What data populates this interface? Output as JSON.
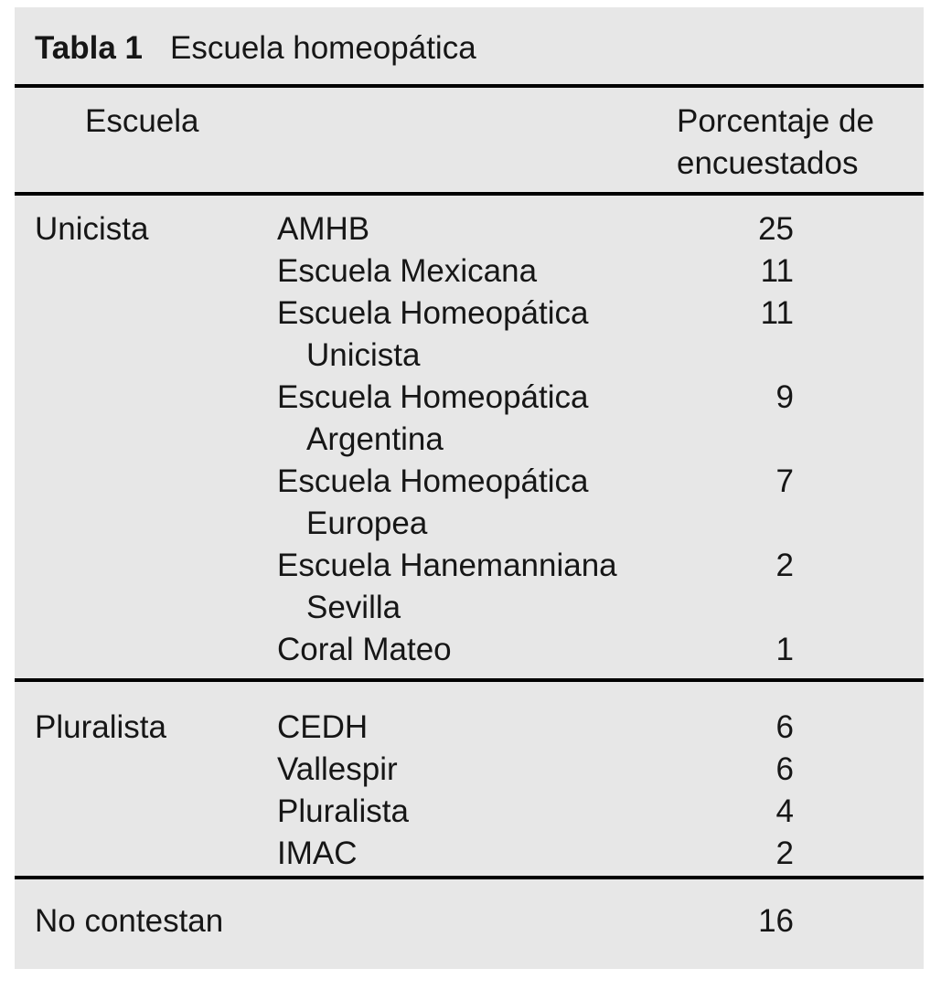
{
  "table": {
    "title_label": "Tabla 1",
    "title": "Escuela homeopática",
    "header": {
      "school": "Escuela",
      "value_line1": "Porcentaje de",
      "value_line2": "encuestados"
    },
    "sections": [
      {
        "group": "Unicista",
        "rows": [
          {
            "school": "AMHB",
            "value": "25"
          },
          {
            "school": "Escuela Mexicana",
            "value": "11"
          },
          {
            "school": "Escuela Homeopática",
            "school2": "Unicista",
            "value": "11"
          },
          {
            "school": "Escuela Homeopática",
            "school2": "Argentina",
            "value": "9"
          },
          {
            "school": "Escuela Homeopática",
            "school2": "Europea",
            "value": "7"
          },
          {
            "school": "Escuela Hanemanniana",
            "school2": "Sevilla",
            "value": "2"
          },
          {
            "school": "Coral Mateo",
            "value": "1"
          }
        ]
      },
      {
        "group": "Pluralista",
        "rows": [
          {
            "school": "CEDH",
            "value": "6"
          },
          {
            "school": "Vallespir",
            "value": "6"
          },
          {
            "school": "Pluralista",
            "value": "4"
          },
          {
            "school": "IMAC",
            "value": "2"
          }
        ]
      },
      {
        "group": "No contestan",
        "rows": [
          {
            "school": "",
            "value": "16"
          }
        ]
      }
    ],
    "colors": {
      "card_background": "#e7e7e7",
      "rule": "#000000",
      "text": "#161616",
      "page_background": "#ffffff"
    }
  }
}
